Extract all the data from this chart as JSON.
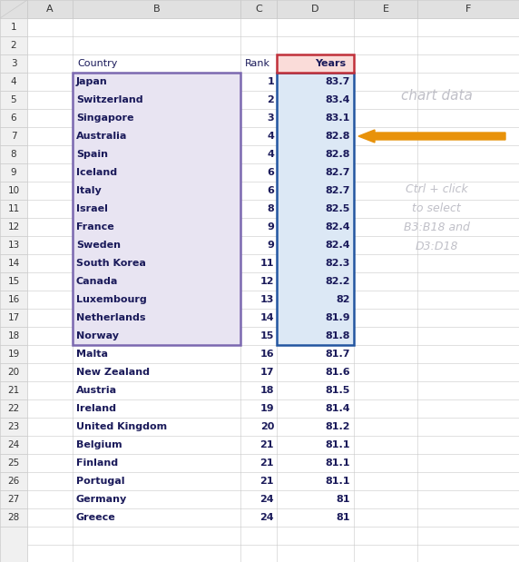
{
  "rows": [
    [
      "Japan",
      1,
      83.7
    ],
    [
      "Switzerland",
      2,
      83.4
    ],
    [
      "Singapore",
      3,
      83.1
    ],
    [
      "Australia",
      4,
      82.8
    ],
    [
      "Spain",
      4,
      82.8
    ],
    [
      "Iceland",
      6,
      82.7
    ],
    [
      "Italy",
      6,
      82.7
    ],
    [
      "Israel",
      8,
      82.5
    ],
    [
      "France",
      9,
      82.4
    ],
    [
      "Sweden",
      9,
      82.4
    ],
    [
      "South Korea",
      11,
      82.3
    ],
    [
      "Canada",
      12,
      82.2
    ],
    [
      "Luxembourg",
      13,
      82.0
    ],
    [
      "Netherlands",
      14,
      81.9
    ],
    [
      "Norway",
      15,
      81.8
    ],
    [
      "Malta",
      16,
      81.7
    ],
    [
      "New Zealand",
      17,
      81.6
    ],
    [
      "Austria",
      18,
      81.5
    ],
    [
      "Ireland",
      19,
      81.4
    ],
    [
      "United Kingdom",
      20,
      81.2
    ],
    [
      "Belgium",
      21,
      81.1
    ],
    [
      "Finland",
      21,
      81.1
    ],
    [
      "Portugal",
      21,
      81.1
    ],
    [
      "Germany",
      24,
      81.0
    ],
    [
      "Greece",
      24,
      81.0
    ]
  ],
  "n_highlighted": 15,
  "highlight_country_color": "#E8E4F2",
  "highlight_years_color": "#DCE8F5",
  "highlight_border_country": "#7B68B0",
  "highlight_border_years": "#2255A0",
  "header_years_fill": "#FADCD9",
  "header_years_border": "#C0303A",
  "annotation_text1": "chart data",
  "annotation_text2": "Ctrl + click\nto select\nB3:B18 and\nD3:D18",
  "arrow_color": "#E8920A",
  "text_color_normal": "#1A1A5A",
  "text_color_light": "#C0C0C8",
  "grid_line_color": "#C8C8C8",
  "col_header_bg": "#E0E0E0",
  "col_header_border": "#A0A0A0",
  "row_num_bg": "#F0F0F0",
  "bg_color": "#FFFFFF",
  "col_header_font": "Courier New",
  "data_font": "Courier New",
  "fig_width": 5.72,
  "fig_height": 6.19,
  "dpi": 100
}
